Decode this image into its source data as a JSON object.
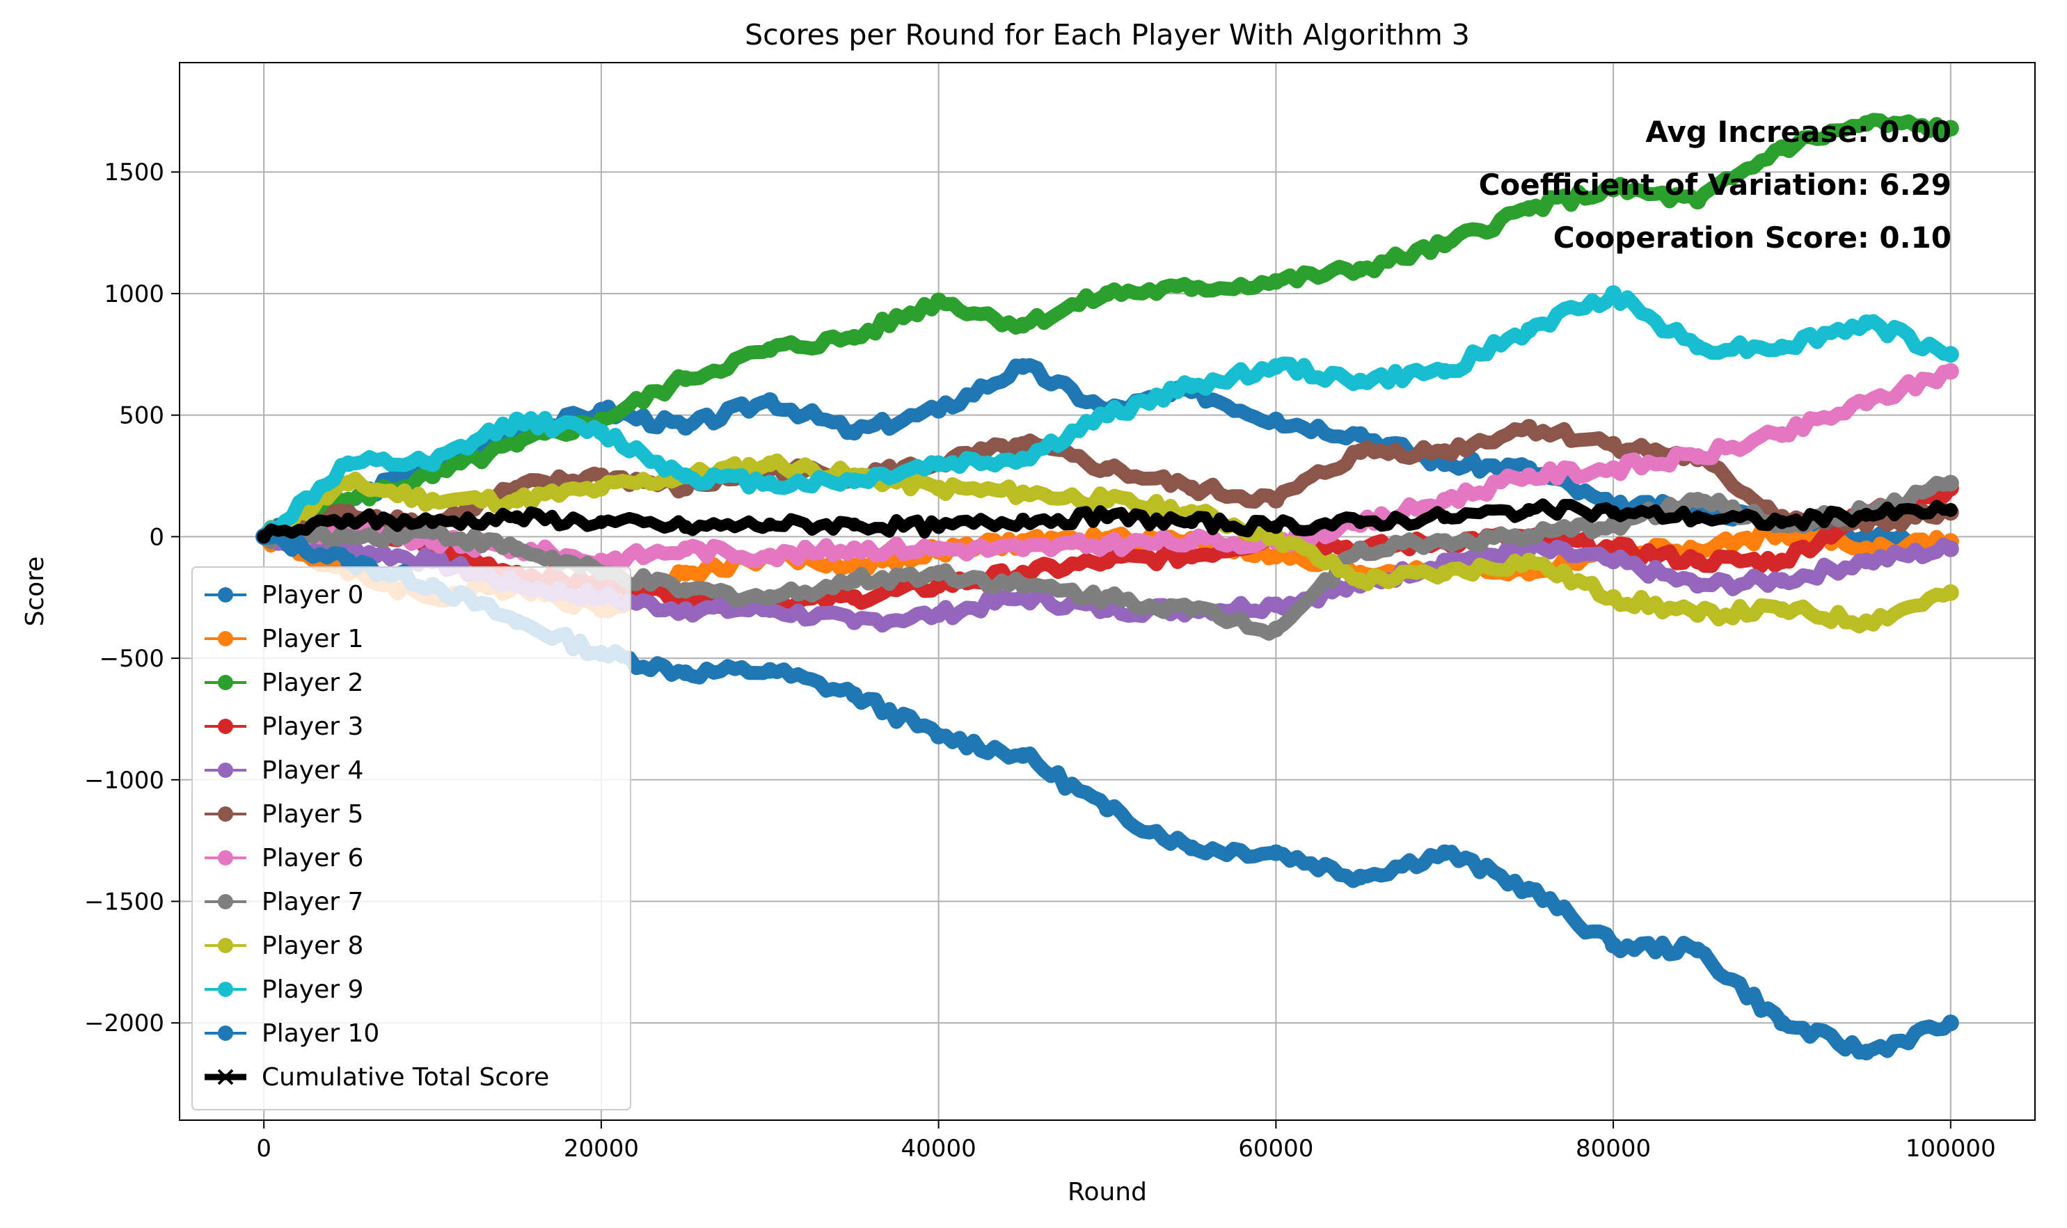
{
  "chart_data": {
    "type": "line",
    "title": "Scores per Round for Each Player With Algorithm 3",
    "xlabel": "Round",
    "ylabel": "Score",
    "xlim": [
      -5000,
      105000
    ],
    "ylim": [
      -2400,
      1950
    ],
    "x_ticks": [
      0,
      20000,
      40000,
      60000,
      80000,
      100000
    ],
    "y_ticks": [
      -2000,
      -1500,
      -1000,
      -500,
      0,
      500,
      1000,
      1500
    ],
    "x_tick_labels": [
      "0",
      "20000",
      "40000",
      "60000",
      "80000",
      "100000"
    ],
    "y_tick_labels": [
      "−2000",
      "−1500",
      "−1000",
      "−500",
      "0",
      "500",
      "1000",
      "1500"
    ],
    "grid": true,
    "legend_position": "lower-left",
    "annotations": [
      "Avg Increase: 0.00",
      "Coefficient of Variation: 6.29",
      "Cooperation Score: 0.10"
    ],
    "x": [
      0,
      5000,
      10000,
      15000,
      20000,
      25000,
      30000,
      35000,
      40000,
      45000,
      50000,
      55000,
      60000,
      65000,
      70000,
      75000,
      80000,
      85000,
      90000,
      95000,
      100000
    ],
    "series": [
      {
        "name": "Player 0",
        "color": "#1f77b4",
        "values": [
          0,
          150,
          300,
          420,
          520,
          450,
          560,
          430,
          520,
          700,
          520,
          600,
          480,
          420,
          300,
          280,
          120,
          120,
          60,
          0,
          -20
        ]
      },
      {
        "name": "Player 1",
        "color": "#ff7f0e",
        "values": [
          0,
          -150,
          -250,
          -200,
          -300,
          -150,
          -80,
          -120,
          -60,
          -20,
          -10,
          -10,
          -80,
          -150,
          -120,
          -150,
          -50,
          -60,
          20,
          -50,
          -20
        ]
      },
      {
        "name": "Player 2",
        "color": "#2ca02c",
        "values": [
          0,
          150,
          250,
          380,
          480,
          650,
          770,
          820,
          970,
          870,
          1000,
          1020,
          1050,
          1100,
          1200,
          1350,
          1430,
          1380,
          1600,
          1700,
          1680
        ]
      },
      {
        "name": "Player 3",
        "color": "#d62728",
        "values": [
          0,
          50,
          -50,
          -150,
          -200,
          -250,
          -280,
          -250,
          -200,
          -150,
          -100,
          -80,
          0,
          -50,
          -20,
          0,
          -50,
          -100,
          -100,
          100,
          200
        ]
      },
      {
        "name": "Player 4",
        "color": "#9467bd",
        "values": [
          0,
          -50,
          -100,
          -200,
          -250,
          -300,
          -300,
          -350,
          -320,
          -250,
          -300,
          -300,
          -280,
          -200,
          -100,
          -50,
          -100,
          -200,
          -180,
          -100,
          -50
        ]
      },
      {
        "name": "Player 5",
        "color": "#8c564b",
        "values": [
          0,
          100,
          50,
          200,
          250,
          200,
          280,
          250,
          300,
          380,
          280,
          200,
          150,
          350,
          350,
          450,
          380,
          320,
          80,
          50,
          100
        ]
      },
      {
        "name": "Player 6",
        "color": "#e377c2",
        "values": [
          0,
          20,
          -20,
          -50,
          -100,
          -50,
          -80,
          -50,
          -50,
          -50,
          -30,
          -20,
          -20,
          50,
          150,
          250,
          280,
          330,
          420,
          550,
          680
        ]
      },
      {
        "name": "Player 7",
        "color": "#7f7f7f",
        "values": [
          0,
          0,
          20,
          -50,
          -150,
          -220,
          -250,
          -180,
          -150,
          -200,
          -250,
          -300,
          -380,
          -50,
          -20,
          0,
          50,
          150,
          50,
          100,
          220
        ]
      },
      {
        "name": "Player 8",
        "color": "#bcbd22",
        "values": [
          0,
          220,
          150,
          150,
          200,
          250,
          300,
          250,
          200,
          180,
          150,
          100,
          0,
          -180,
          -150,
          -100,
          -250,
          -320,
          -300,
          -350,
          -230
        ]
      },
      {
        "name": "Player 9",
        "color": "#17becf",
        "values": [
          0,
          300,
          300,
          480,
          430,
          250,
          220,
          230,
          300,
          320,
          500,
          620,
          700,
          640,
          680,
          850,
          1000,
          780,
          780,
          880,
          750
        ]
      },
      {
        "name": "Player 10",
        "color": "#1f77b4",
        "values": [
          0,
          -100,
          -200,
          -350,
          -480,
          -560,
          -550,
          -650,
          -820,
          -900,
          -1120,
          -1280,
          -1300,
          -1400,
          -1300,
          -1450,
          -1680,
          -1700,
          -2000,
          -2120,
          -2000
        ]
      }
    ],
    "cumulative": {
      "name": "Cumulative Total Score",
      "color": "#000000",
      "values": [
        0,
        70,
        60,
        80,
        60,
        40,
        50,
        50,
        40,
        70,
        80,
        60,
        40,
        60,
        80,
        110,
        100,
        80,
        60,
        90,
        110
      ]
    }
  }
}
